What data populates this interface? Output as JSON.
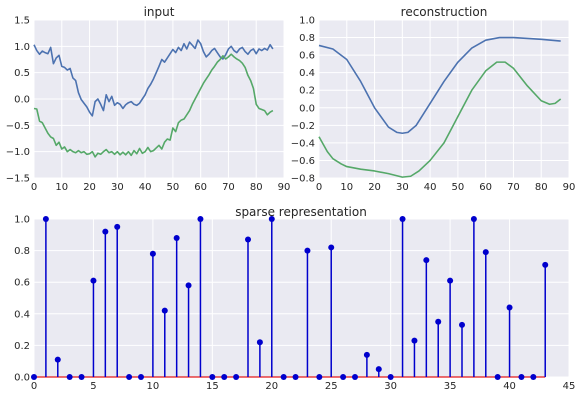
{
  "chart_data": [
    {
      "type": "line",
      "title": "input",
      "xlim": [
        0,
        90
      ],
      "ylim": [
        -1.5,
        1.5
      ],
      "xticks": [
        0,
        10,
        20,
        30,
        40,
        50,
        60,
        70,
        80,
        90
      ],
      "yticks": [
        -1.5,
        -1.0,
        -0.5,
        0.0,
        0.5,
        1.0,
        1.5
      ],
      "grid": true,
      "series": [
        {
          "color": "#4C72B0",
          "values": [
            1.03,
            0.92,
            0.85,
            0.91,
            0.88,
            0.86,
            0.98,
            0.67,
            0.78,
            0.83,
            0.62,
            0.6,
            0.55,
            0.58,
            0.4,
            0.35,
            0.12,
            -0.01,
            -0.08,
            -0.15,
            -0.25,
            -0.32,
            -0.05,
            0.0,
            -0.1,
            -0.22,
            0.08,
            -0.05,
            0.05,
            -0.12,
            -0.07,
            -0.1,
            -0.18,
            -0.11,
            -0.07,
            -0.05,
            -0.1,
            -0.12,
            -0.08,
            0.0,
            0.08,
            0.2,
            0.28,
            0.38,
            0.5,
            0.62,
            0.75,
            0.7,
            0.78,
            0.86,
            0.94,
            0.88,
            0.98,
            0.92,
            1.05,
            0.95,
            1.08,
            1.02,
            0.96,
            1.12,
            1.05,
            0.9,
            0.8,
            0.85,
            0.92,
            0.96,
            0.88,
            0.8,
            0.76,
            0.84,
            0.95,
            1.0,
            0.92,
            0.88,
            0.95,
            0.98,
            0.9,
            0.85,
            0.92,
            0.95,
            0.86,
            0.95,
            0.92,
            0.96,
            0.93,
            1.03,
            0.95
          ]
        },
        {
          "color": "#55A868",
          "values": [
            -0.18,
            -0.19,
            -0.42,
            -0.45,
            -0.55,
            -0.65,
            -0.72,
            -0.75,
            -0.88,
            -0.82,
            -0.95,
            -0.91,
            -1.0,
            -0.96,
            -1.0,
            -1.02,
            -0.98,
            -1.02,
            -1.0,
            -1.05,
            -1.04,
            -1.0,
            -1.1,
            -1.03,
            -1.05,
            -1.0,
            -0.96,
            -1.02,
            -1.0,
            -1.05,
            -1.0,
            -1.06,
            -1.01,
            -1.06,
            -1.0,
            -1.07,
            -0.98,
            -1.04,
            -0.94,
            -1.03,
            -1.0,
            -0.92,
            -1.0,
            -0.98,
            -0.93,
            -0.88,
            -0.95,
            -0.82,
            -0.76,
            -0.78,
            -0.55,
            -0.62,
            -0.45,
            -0.4,
            -0.38,
            -0.3,
            -0.22,
            -0.1,
            0.0,
            0.1,
            0.2,
            0.3,
            0.38,
            0.46,
            0.55,
            0.62,
            0.7,
            0.75,
            0.82,
            0.76,
            0.8,
            0.85,
            0.8,
            0.76,
            0.73,
            0.68,
            0.6,
            0.45,
            0.35,
            0.2,
            -0.1,
            -0.18,
            -0.2,
            -0.22,
            -0.3,
            -0.25,
            -0.22
          ]
        }
      ]
    },
    {
      "type": "line",
      "title": "reconstruction",
      "xlim": [
        0,
        90
      ],
      "ylim": [
        -0.8,
        1.0
      ],
      "xticks": [
        0,
        10,
        20,
        30,
        40,
        50,
        60,
        70,
        80,
        90
      ],
      "yticks": [
        -0.8,
        -0.6,
        -0.4,
        -0.2,
        0.0,
        0.2,
        0.4,
        0.6,
        0.8,
        1.0
      ],
      "grid": true,
      "series": [
        {
          "color": "#4C72B0",
          "x": [
            0,
            5,
            10,
            15,
            20,
            25,
            28,
            30,
            32,
            35,
            40,
            45,
            50,
            55,
            60,
            65,
            70,
            75,
            80,
            87
          ],
          "values": [
            0.71,
            0.67,
            0.55,
            0.3,
            0.0,
            -0.22,
            -0.28,
            -0.29,
            -0.28,
            -0.2,
            0.05,
            0.3,
            0.52,
            0.68,
            0.77,
            0.8,
            0.8,
            0.79,
            0.78,
            0.76
          ]
        },
        {
          "color": "#55A868",
          "x": [
            0,
            3,
            5,
            8,
            10,
            15,
            20,
            25,
            30,
            33,
            36,
            40,
            45,
            50,
            55,
            60,
            64,
            67,
            70,
            75,
            80,
            83,
            85,
            87
          ],
          "values": [
            -0.33,
            -0.5,
            -0.58,
            -0.64,
            -0.67,
            -0.7,
            -0.72,
            -0.75,
            -0.79,
            -0.78,
            -0.72,
            -0.6,
            -0.4,
            -0.1,
            0.2,
            0.42,
            0.52,
            0.52,
            0.45,
            0.25,
            0.08,
            0.04,
            0.05,
            0.1
          ]
        }
      ]
    },
    {
      "type": "stem",
      "title": "sparse representation",
      "xlim": [
        0,
        45
      ],
      "ylim": [
        0,
        1.0
      ],
      "xticks": [
        0,
        5,
        10,
        15,
        20,
        25,
        30,
        35,
        40,
        45
      ],
      "yticks": [
        0.0,
        0.2,
        0.4,
        0.6,
        0.8,
        1.0
      ],
      "grid": true,
      "baseline_color": "#E41A1C",
      "stem_color": "#0000CD",
      "x": [
        0,
        1,
        2,
        3,
        4,
        5,
        6,
        7,
        8,
        9,
        10,
        11,
        12,
        13,
        14,
        15,
        16,
        17,
        18,
        19,
        20,
        21,
        22,
        23,
        24,
        25,
        26,
        27,
        28,
        29,
        30,
        31,
        32,
        33,
        34,
        35,
        36,
        37,
        38,
        39,
        40,
        41,
        42,
        43
      ],
      "values": [
        0.0,
        1.0,
        0.11,
        0.0,
        0.0,
        0.61,
        0.92,
        0.95,
        0.0,
        0.0,
        0.78,
        0.42,
        0.88,
        0.58,
        1.0,
        0.0,
        0.0,
        0.0,
        0.87,
        0.22,
        1.0,
        0.0,
        0.0,
        0.8,
        0.0,
        0.82,
        0.0,
        0.0,
        0.14,
        0.05,
        0.0,
        1.0,
        0.23,
        0.74,
        0.35,
        0.61,
        0.33,
        1.0,
        0.79,
        0.0,
        0.44,
        0.0,
        0.0,
        0.71
      ]
    }
  ]
}
